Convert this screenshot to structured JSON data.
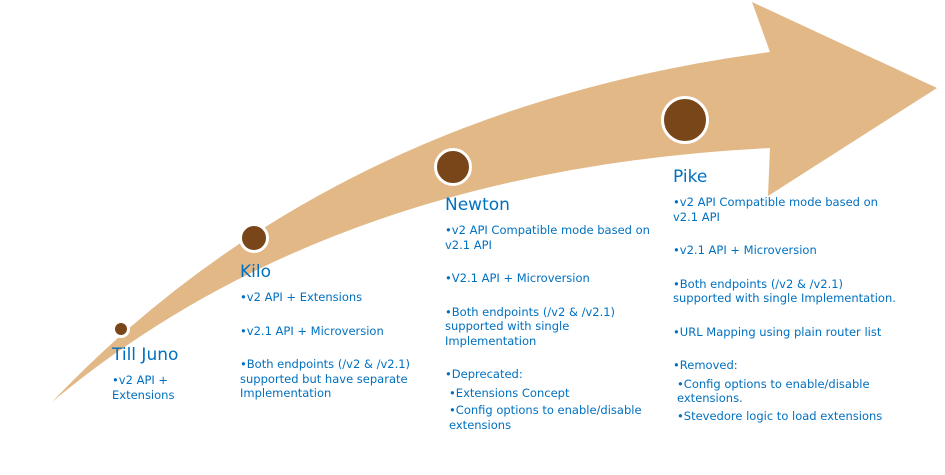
{
  "colors": {
    "arrow": "#E2B887",
    "milestone": "#784619",
    "text": "#0070C0"
  },
  "milestones": [
    {
      "title": "Till Juno",
      "items": [
        {
          "text": "v2 API + Extensions"
        }
      ]
    },
    {
      "title": "Kilo",
      "items": [
        {
          "text": "v2 API + Extensions"
        },
        {
          "text": "v2.1 API + Microversion"
        },
        {
          "text": "Both endpoints (/v2 & /v2.1) supported but have separate Implementation"
        }
      ]
    },
    {
      "title": "Newton",
      "items": [
        {
          "text": "v2 API Compatible mode based on v2.1 API"
        },
        {
          "text": "V2.1 API + Microversion"
        },
        {
          "text": "Both endpoints (/v2 & /v2.1) supported with single Implementation"
        },
        {
          "text": "Deprecated:",
          "sub": [
            "Extensions Concept",
            "Config options to enable/disable extensions"
          ]
        }
      ]
    },
    {
      "title": "Pike",
      "items": [
        {
          "text": "v2 API Compatible mode based on v2.1 API"
        },
        {
          "text": "v2.1 API + Microversion"
        },
        {
          "text": "Both endpoints (/v2 & /v2.1) supported with single Implementation."
        },
        {
          "text": "URL Mapping using plain router list"
        },
        {
          "text": "Removed:",
          "sub": [
            "Config options to enable/disable extensions.",
            "Stevedore logic to load extensions"
          ]
        }
      ]
    }
  ]
}
